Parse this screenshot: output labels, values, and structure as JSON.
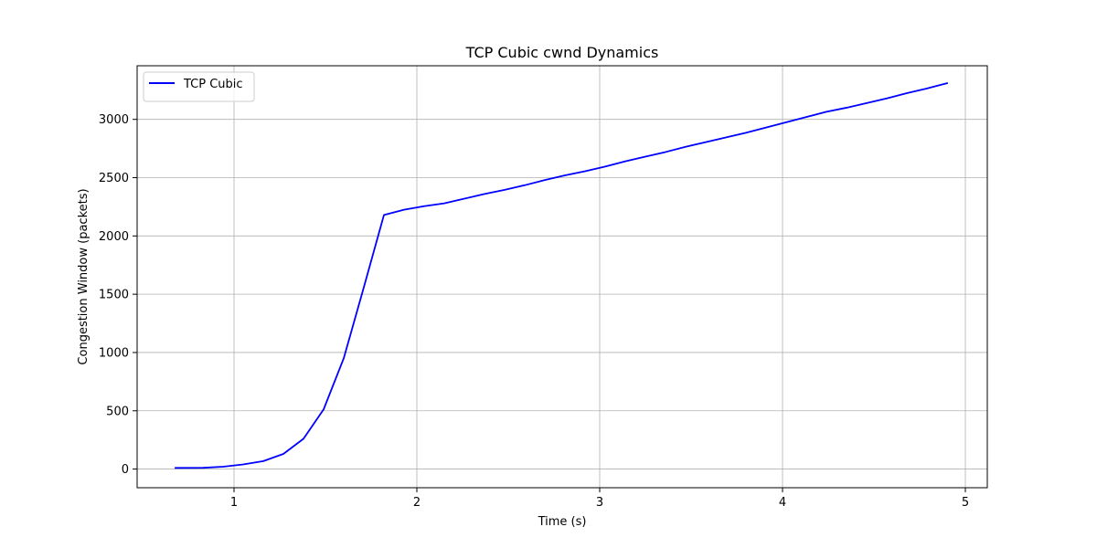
{
  "chart_data": {
    "type": "line",
    "title": "TCP Cubic cwnd Dynamics",
    "xlabel": "Time (s)",
    "ylabel": "Congestion Window (packets)",
    "xlim": [
      0.47,
      5.12
    ],
    "ylim": [
      -160,
      3460
    ],
    "xticks": [
      1,
      2,
      3,
      4,
      5
    ],
    "yticks": [
      0,
      500,
      1000,
      1500,
      2000,
      2500,
      3000
    ],
    "grid": true,
    "legend_position": "top-left",
    "series": [
      {
        "name": "TCP Cubic",
        "color": "#0000ff",
        "x": [
          0.68,
          0.83,
          0.94,
          1.05,
          1.16,
          1.27,
          1.38,
          1.49,
          1.6,
          1.71,
          1.82,
          1.93,
          2.04,
          2.15,
          2.26,
          2.37,
          2.48,
          2.59,
          2.7,
          2.81,
          2.92,
          3.03,
          3.14,
          3.25,
          3.36,
          3.47,
          3.58,
          3.69,
          3.8,
          3.91,
          4.02,
          4.13,
          4.24,
          4.35,
          4.46,
          4.57,
          4.68,
          4.79,
          4.9
        ],
        "y": [
          10,
          11,
          20,
          40,
          68,
          130,
          260,
          512,
          950,
          1560,
          2180,
          2225,
          2255,
          2280,
          2320,
          2360,
          2395,
          2435,
          2480,
          2520,
          2555,
          2595,
          2640,
          2680,
          2720,
          2765,
          2805,
          2845,
          2885,
          2930,
          2975,
          3020,
          3065,
          3100,
          3140,
          3180,
          3225,
          3265,
          3310
        ]
      }
    ]
  }
}
